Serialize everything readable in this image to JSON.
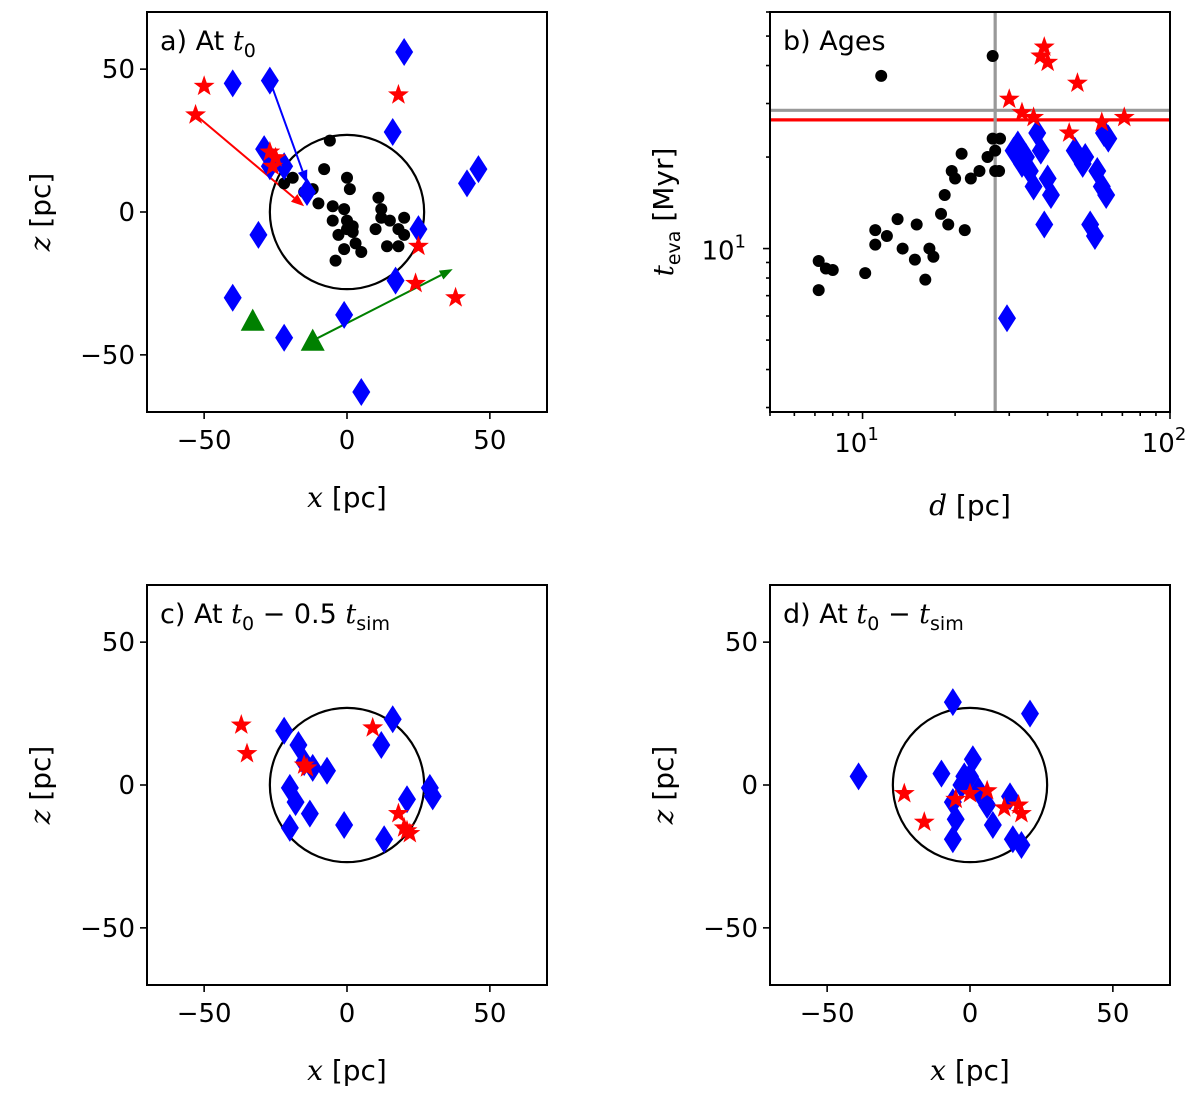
{
  "chart_data": [
    {
      "id": "a",
      "type": "scatter",
      "title_prefix": "a) At ",
      "title_math": "t",
      "title_sub": "0",
      "title_rest": "",
      "xlabel_var": "x",
      "xlabel_unit": " [pc]",
      "ylabel_var": "z",
      "ylabel_unit": " [pc]",
      "xlim": [
        -70,
        70
      ],
      "ylim": [
        -70,
        70
      ],
      "xticks": [
        -50,
        0,
        50
      ],
      "yticks": [
        -50,
        0,
        50
      ],
      "tick_labels": {
        "-50": "−50",
        "0": "0",
        "50": "50"
      },
      "circle_radius": 27,
      "series": [
        {
          "name": "black",
          "marker": "circle",
          "color": "#000000",
          "points": [
            [
              -6,
              25
            ],
            [
              -8,
              15
            ],
            [
              -12,
              8
            ],
            [
              -15,
              7
            ],
            [
              -19,
              12
            ],
            [
              -22,
              10
            ],
            [
              -10,
              3
            ],
            [
              -5,
              2
            ],
            [
              -5,
              -3
            ],
            [
              0,
              -3
            ],
            [
              2,
              -7
            ],
            [
              3,
              -11
            ],
            [
              5,
              -14
            ],
            [
              0,
              -6
            ],
            [
              0,
              12
            ],
            [
              1,
              8
            ],
            [
              -1,
              1
            ],
            [
              2,
              -5
            ],
            [
              -3,
              -8
            ],
            [
              -1,
              -13
            ],
            [
              -4,
              -17
            ],
            [
              10,
              -6
            ],
            [
              12,
              -2
            ],
            [
              14,
              -12
            ],
            [
              11,
              5
            ],
            [
              12,
              1
            ],
            [
              15,
              -3
            ],
            [
              18,
              -6
            ],
            [
              18,
              -12
            ],
            [
              20,
              -8
            ],
            [
              20,
              -2
            ]
          ]
        },
        {
          "name": "blue",
          "marker": "diamond",
          "color": "#0000ff",
          "points": [
            [
              -40,
              45
            ],
            [
              -27,
              46
            ],
            [
              20,
              56
            ],
            [
              -29,
              22
            ],
            [
              -27,
              16
            ],
            [
              -22,
              16
            ],
            [
              -14,
              7
            ],
            [
              -31,
              -8
            ],
            [
              16,
              28
            ],
            [
              42,
              10
            ],
            [
              46,
              15
            ],
            [
              25,
              -6
            ],
            [
              17,
              -24
            ],
            [
              -40,
              -30
            ],
            [
              -22,
              -44
            ],
            [
              -1,
              -36
            ],
            [
              5,
              -63
            ]
          ]
        },
        {
          "name": "red",
          "marker": "star",
          "color": "#ff0000",
          "points": [
            [
              -50,
              44
            ],
            [
              -53,
              34
            ],
            [
              -25,
              19
            ],
            [
              -26,
              16
            ],
            [
              -27,
              21
            ],
            [
              18,
              41
            ],
            [
              25,
              -12
            ],
            [
              24,
              -25
            ],
            [
              38,
              -30
            ]
          ]
        },
        {
          "name": "green",
          "marker": "triangle",
          "color": "#008000",
          "points": [
            [
              -33,
              -38
            ],
            [
              -12,
              -45
            ]
          ]
        }
      ],
      "arrows": [
        {
          "color": "#0000ff",
          "from": [
            -27,
            46
          ],
          "to": [
            -14,
            10
          ]
        },
        {
          "color": "#ff0000",
          "from": [
            -53,
            34
          ],
          "to": [
            -15,
            2
          ]
        },
        {
          "color": "#008000",
          "from": [
            -12,
            -45
          ],
          "to": [
            37,
            -20
          ]
        }
      ]
    },
    {
      "id": "b",
      "type": "scatter",
      "title": "b) Ages",
      "xscale": "log",
      "yscale": "log",
      "xlim": [
        5,
        100
      ],
      "ylim": [
        2.9,
        60
      ],
      "xticks_major": [
        10,
        100
      ],
      "xtick_labels": [
        "10",
        "10"
      ],
      "xtick_exponents": [
        "1",
        "2"
      ],
      "yticks_major": [
        10
      ],
      "ytick_labels": [
        "10"
      ],
      "ytick_exponents": [
        "1"
      ],
      "xlabel_var": "d",
      "xlabel_unit": " [pc]",
      "ylabel_var": "t",
      "ylabel_sub": "eva",
      "ylabel_unit": " [Myr]",
      "hlines": [
        {
          "y": 28.5,
          "color": "#999999"
        },
        {
          "y": 26.5,
          "color": "#ff0000"
        }
      ],
      "vlines": [
        {
          "x": 27,
          "color": "#999999"
        }
      ],
      "series": [
        {
          "name": "black",
          "marker": "circle",
          "color": "#000000",
          "points": [
            [
              11.5,
              37
            ],
            [
              26.5,
              43
            ],
            [
              7.2,
              9.1
            ],
            [
              7.6,
              8.6
            ],
            [
              8.0,
              8.5
            ],
            [
              7.2,
              7.3
            ],
            [
              10.2,
              8.3
            ],
            [
              11.0,
              10.3
            ],
            [
              11.0,
              11.5
            ],
            [
              12.0,
              11.0
            ],
            [
              13.0,
              12.5
            ],
            [
              13.5,
              10.0
            ],
            [
              14.8,
              9.2
            ],
            [
              15.0,
              12.0
            ],
            [
              16.0,
              7.9
            ],
            [
              16.5,
              10.0
            ],
            [
              17.0,
              9.4
            ],
            [
              18.0,
              13.0
            ],
            [
              18.5,
              15.0
            ],
            [
              19.0,
              12.0
            ],
            [
              19.5,
              18.0
            ],
            [
              20.0,
              17.0
            ],
            [
              21.0,
              20.5
            ],
            [
              21.5,
              11.5
            ],
            [
              22.5,
              17.0
            ],
            [
              24.0,
              18.0
            ],
            [
              25.5,
              20.0
            ],
            [
              26.5,
              23.0
            ],
            [
              27.0,
              18.0
            ],
            [
              27.8,
              18.0
            ],
            [
              28.0,
              23.0
            ],
            [
              27.0,
              21.0
            ]
          ]
        },
        {
          "name": "blue",
          "marker": "diamond",
          "color": "#0000ff",
          "points": [
            [
              29.5,
              5.9
            ],
            [
              31,
              21
            ],
            [
              32,
              22
            ],
            [
              33,
              19
            ],
            [
              34,
              20
            ],
            [
              35,
              18
            ],
            [
              36,
              16
            ],
            [
              37,
              24
            ],
            [
              38,
              21
            ],
            [
              39,
              12
            ],
            [
              40,
              17
            ],
            [
              41,
              15
            ],
            [
              49,
              21
            ],
            [
              52,
              19
            ],
            [
              53,
              20
            ],
            [
              55,
              12
            ],
            [
              57,
              11
            ],
            [
              58,
              18
            ],
            [
              60,
              16
            ],
            [
              61,
              24
            ],
            [
              62,
              15
            ],
            [
              63,
              23
            ]
          ]
        },
        {
          "name": "red",
          "marker": "star",
          "color": "#ff0000",
          "points": [
            [
              39,
              46
            ],
            [
              38,
              43
            ],
            [
              40,
              41
            ],
            [
              50,
              35
            ],
            [
              30,
              31
            ],
            [
              33,
              28
            ],
            [
              36,
              27
            ],
            [
              47,
              24
            ],
            [
              60,
              26
            ],
            [
              71,
              27
            ]
          ]
        }
      ]
    },
    {
      "id": "c",
      "type": "scatter",
      "title_prefix": "c) At ",
      "title_math": "t",
      "title_sub": "0",
      "title_rest": " − 0.5 ",
      "title_math2": "t",
      "title_sub2": "sim",
      "xlabel_var": "x",
      "xlabel_unit": " [pc]",
      "ylabel_var": "z",
      "ylabel_unit": " [pc]",
      "xlim": [
        -70,
        70
      ],
      "ylim": [
        -70,
        70
      ],
      "xticks": [
        -50,
        0,
        50
      ],
      "yticks": [
        -50,
        0,
        50
      ],
      "tick_labels": {
        "-50": "−50",
        "0": "0",
        "50": "50"
      },
      "circle_radius": 27,
      "series": [
        {
          "name": "blue",
          "marker": "diamond",
          "color": "#0000ff",
          "points": [
            [
              -22,
              19
            ],
            [
              -17,
              14
            ],
            [
              -15,
              8
            ],
            [
              -12,
              6
            ],
            [
              -7,
              5
            ],
            [
              -20,
              -1
            ],
            [
              -18,
              -6
            ],
            [
              -13,
              -10
            ],
            [
              -20,
              -15
            ],
            [
              -1,
              -14
            ],
            [
              16,
              23
            ],
            [
              12,
              14
            ],
            [
              21,
              -5
            ],
            [
              29,
              -1
            ],
            [
              30,
              -4
            ],
            [
              13,
              -19
            ]
          ]
        },
        {
          "name": "red",
          "marker": "star",
          "color": "#ff0000",
          "points": [
            [
              -37,
              21
            ],
            [
              -35,
              11
            ],
            [
              -15,
              7
            ],
            [
              -14,
              6
            ],
            [
              9,
              20
            ],
            [
              18,
              -10
            ],
            [
              20,
              -15
            ],
            [
              21,
              -16
            ],
            [
              22,
              -17
            ]
          ]
        }
      ]
    },
    {
      "id": "d",
      "type": "scatter",
      "title_prefix": "d) At ",
      "title_math": "t",
      "title_sub": "0",
      "title_rest": " − ",
      "title_math2": "t",
      "title_sub2": "sim",
      "xlabel_var": "x",
      "xlabel_unit": " [pc]",
      "ylabel_var": "z",
      "ylabel_unit": " [pc]",
      "xlim": [
        -70,
        70
      ],
      "ylim": [
        -70,
        70
      ],
      "xticks": [
        -50,
        0,
        50
      ],
      "yticks": [
        -50,
        0,
        50
      ],
      "tick_labels": {
        "-50": "−50",
        "0": "0",
        "50": "50"
      },
      "circle_radius": 27,
      "series": [
        {
          "name": "blue",
          "marker": "diamond",
          "color": "#0000ff",
          "points": [
            [
              -39,
              3
            ],
            [
              -6,
              29
            ],
            [
              21,
              25
            ],
            [
              -10,
              4
            ],
            [
              -3,
              0
            ],
            [
              0,
              3
            ],
            [
              -6,
              -6
            ],
            [
              -5,
              -12
            ],
            [
              -6,
              -19
            ],
            [
              3,
              -2
            ],
            [
              6,
              -7
            ],
            [
              8,
              -14
            ],
            [
              14,
              -4
            ],
            [
              15,
              -19
            ],
            [
              18,
              -21
            ],
            [
              1,
              9
            ],
            [
              -2,
              3
            ]
          ]
        },
        {
          "name": "red",
          "marker": "star",
          "color": "#ff0000",
          "points": [
            [
              -23,
              -3
            ],
            [
              -16,
              -13
            ],
            [
              -5,
              -5
            ],
            [
              0,
              -3
            ],
            [
              6,
              -2
            ],
            [
              12,
              -8
            ],
            [
              17,
              -7
            ],
            [
              18,
              -10
            ]
          ]
        }
      ]
    }
  ]
}
